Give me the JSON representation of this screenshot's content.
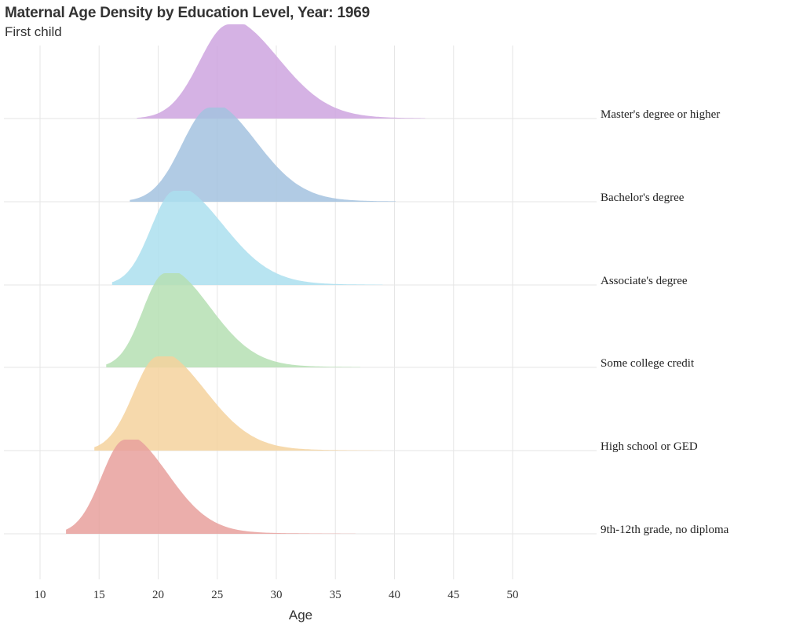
{
  "chart_data": {
    "type": "area",
    "title": "Maternal Age Density by Education Level, Year: 1969",
    "subtitle": "First child",
    "xlabel": "Age",
    "ylabel": "",
    "xlim": [
      7,
      57
    ],
    "xticks": [
      10,
      15,
      20,
      25,
      30,
      35,
      40,
      45,
      50
    ],
    "grid": true,
    "legend": "none",
    "series": [
      {
        "name": "9th-12th grade, no diploma",
        "color": "#e8a09c",
        "peak": 17.2,
        "min": 12.2,
        "max": 36.7,
        "left_sd": 2.0,
        "right_sd": 3.6
      },
      {
        "name": "High school or GED",
        "color": "#f5d29e",
        "peak": 20.0,
        "min": 14.6,
        "max": 38.9,
        "left_sd": 2.1,
        "right_sd": 4.0
      },
      {
        "name": "Some college credit",
        "color": "#b5dfb3",
        "peak": 20.6,
        "min": 15.6,
        "max": 37.1,
        "left_sd": 1.9,
        "right_sd": 3.8
      },
      {
        "name": "Associate's degree",
        "color": "#abdfee",
        "peak": 21.4,
        "min": 16.1,
        "max": 39.0,
        "left_sd": 2.0,
        "right_sd": 4.1
      },
      {
        "name": "Bachelor's degree",
        "color": "#a3c2df",
        "peak": 24.4,
        "min": 17.6,
        "max": 40.1,
        "left_sd": 2.4,
        "right_sd": 3.9
      },
      {
        "name": "Master's degree or higher",
        "color": "#cea4df",
        "peak": 26.0,
        "min": 18.2,
        "max": 42.6,
        "left_sd": 2.5,
        "right_sd": 4.2
      }
    ]
  }
}
